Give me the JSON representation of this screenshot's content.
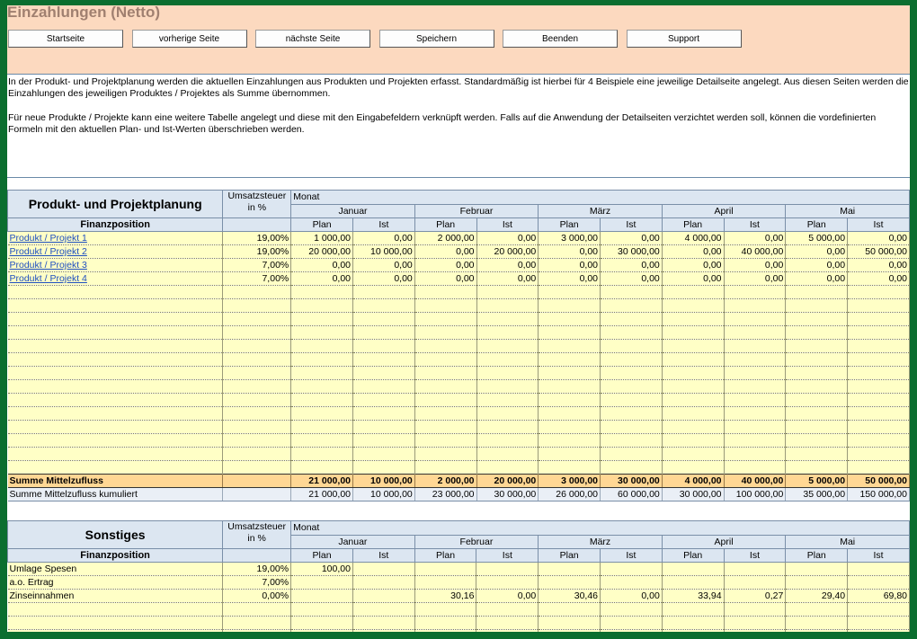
{
  "window": {
    "title": "Einzahlungen (Netto)"
  },
  "toolbar": {
    "buttons": [
      "Startseite",
      "vorherige Seite",
      "nächste Seite",
      "Speichern",
      "Beenden",
      "Support"
    ]
  },
  "description": [
    "In der Produkt- und Projektplanung werden die aktuellen Einzahlungen aus Produkten und Projekten erfasst. Standardmäßig ist hierbei für 4 Beispiele eine jeweilige Detailseite angelegt. Aus diesen Seiten werden die Einzahlungen des jeweiligen Produktes / Projektes als Summe übernommen.",
    "Für neue Produkte / Projekte kann eine weitere Tabelle angelegt und diese mit den Eingabefeldern verknüpft werden. Falls auf die Anwendung der Detailseiten verzichtet werden soll, können die vordefinierten Formeln mit den aktuellen Plan- und Ist-Werten überschrieben werden."
  ],
  "planning": {
    "title": "Produkt- und Projektplanung",
    "finanzposition": "Finanzposition",
    "ust_header": [
      "Umsatzsteuer",
      "in %"
    ],
    "monat": "Monat",
    "months": [
      "Januar",
      "Februar",
      "März",
      "April",
      "Mai"
    ],
    "plan": "Plan",
    "ist": "Ist",
    "rows": [
      {
        "name": "Produkt / Projekt 1",
        "ust": "19,00%",
        "values": [
          "1 000,00",
          "0,00",
          "2 000,00",
          "0,00",
          "3 000,00",
          "0,00",
          "4 000,00",
          "0,00",
          "5 000,00",
          "0,00"
        ]
      },
      {
        "name": "Produkt / Projekt 2",
        "ust": "19,00%",
        "values": [
          "20 000,00",
          "10 000,00",
          "0,00",
          "20 000,00",
          "0,00",
          "30 000,00",
          "0,00",
          "40 000,00",
          "0,00",
          "50 000,00"
        ]
      },
      {
        "name": "Produkt / Projekt 3",
        "ust": "7,00%",
        "values": [
          "0,00",
          "0,00",
          "0,00",
          "0,00",
          "0,00",
          "0,00",
          "0,00",
          "0,00",
          "0,00",
          "0,00"
        ]
      },
      {
        "name": "Produkt / Projekt 4",
        "ust": "7,00%",
        "values": [
          "0,00",
          "0,00",
          "0,00",
          "0,00",
          "0,00",
          "0,00",
          "0,00",
          "0,00",
          "0,00",
          "0,00"
        ]
      }
    ],
    "summe": {
      "label": "Summe Mittelzufluss",
      "values": [
        "21 000,00",
        "10 000,00",
        "2 000,00",
        "20 000,00",
        "3 000,00",
        "30 000,00",
        "4 000,00",
        "40 000,00",
        "5 000,00",
        "50 000,00"
      ]
    },
    "kumuliert": {
      "label": "Summe Mittelzufluss kumuliert",
      "values": [
        "21 000,00",
        "10 000,00",
        "23 000,00",
        "30 000,00",
        "26 000,00",
        "60 000,00",
        "30 000,00",
        "100 000,00",
        "35 000,00",
        "150 000,00"
      ]
    }
  },
  "sonstiges": {
    "title": "Sonstiges",
    "finanzposition": "Finanzposition",
    "ust_header": [
      "Umsatzsteuer",
      "in %"
    ],
    "monat": "Monat",
    "months": [
      "Januar",
      "Februar",
      "März",
      "April",
      "Mai"
    ],
    "plan": "Plan",
    "ist": "Ist",
    "rows": [
      {
        "name": "Umlage Spesen",
        "ust": "19,00%",
        "values": [
          "100,00",
          "",
          "",
          "",
          "",
          "",
          "",
          "",
          "",
          ""
        ]
      },
      {
        "name": "a.o. Ertrag",
        "ust": "7,00%",
        "values": [
          "",
          "",
          "",
          "",
          "",
          "",
          "",
          "",
          "",
          ""
        ]
      },
      {
        "name": "Zinseinnahmen",
        "ust": "0,00%",
        "values": [
          "",
          "",
          "30,16",
          "0,00",
          "30,46",
          "0,00",
          "33,94",
          "0,27",
          "29,40",
          "69,80"
        ]
      }
    ]
  }
}
